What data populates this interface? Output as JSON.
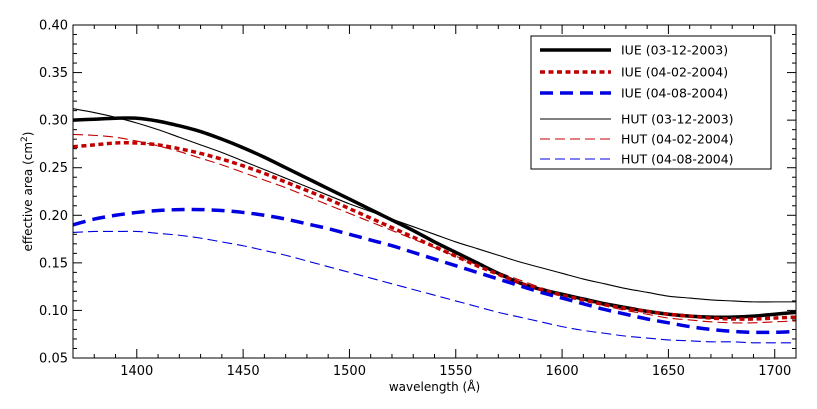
{
  "chart_data": {
    "type": "line",
    "xlabel": "wavelength (Å)",
    "ylabel_main": "effective area (cm",
    "ylabel_sup": "2",
    "ylabel_end": ")",
    "xlim": [
      1370,
      1710
    ],
    "ylim": [
      0.05,
      0.4
    ],
    "x_ticks": [
      1400,
      1450,
      1500,
      1550,
      1600,
      1650,
      1700
    ],
    "x_tick_labels": [
      "1400",
      "1450",
      "1500",
      "1550",
      "1600",
      "1650",
      "1700"
    ],
    "y_ticks": [
      0.05,
      0.1,
      0.15,
      0.2,
      0.25,
      0.3,
      0.35,
      0.4
    ],
    "y_tick_labels": [
      "0.05",
      "0.10",
      "0.15",
      "0.20",
      "0.25",
      "0.30",
      "0.35",
      "0.40"
    ],
    "grid": false,
    "legend_position": "top-right",
    "x": [
      1370,
      1380,
      1390,
      1400,
      1410,
      1420,
      1430,
      1440,
      1450,
      1460,
      1470,
      1480,
      1490,
      1500,
      1510,
      1520,
      1530,
      1540,
      1550,
      1560,
      1570,
      1580,
      1590,
      1600,
      1610,
      1620,
      1630,
      1640,
      1650,
      1660,
      1670,
      1680,
      1690,
      1700,
      1710
    ],
    "series": [
      {
        "name": "IUE (03-12-2003)",
        "color": "#000000",
        "dash": "solid",
        "weight": "thick",
        "values": [
          0.3,
          0.301,
          0.302,
          0.302,
          0.299,
          0.294,
          0.288,
          0.28,
          0.271,
          0.261,
          0.25,
          0.239,
          0.228,
          0.217,
          0.206,
          0.195,
          0.184,
          0.172,
          0.161,
          0.15,
          0.139,
          0.129,
          0.122,
          0.117,
          0.112,
          0.107,
          0.103,
          0.099,
          0.096,
          0.094,
          0.093,
          0.093,
          0.094,
          0.096,
          0.098
        ]
      },
      {
        "name": "IUE (04-02-2004)",
        "color": "#c00000",
        "dash": "dotted",
        "weight": "thick",
        "values": [
          0.272,
          0.274,
          0.276,
          0.276,
          0.274,
          0.27,
          0.265,
          0.259,
          0.252,
          0.244,
          0.235,
          0.226,
          0.217,
          0.207,
          0.197,
          0.187,
          0.177,
          0.167,
          0.157,
          0.147,
          0.138,
          0.129,
          0.122,
          0.116,
          0.111,
          0.106,
          0.102,
          0.099,
          0.096,
          0.094,
          0.092,
          0.091,
          0.091,
          0.092,
          0.093
        ]
      },
      {
        "name": "IUE (04-08-2004)",
        "color": "#0000e0",
        "dash": "dashed",
        "weight": "thick",
        "values": [
          0.19,
          0.196,
          0.2,
          0.203,
          0.205,
          0.206,
          0.206,
          0.205,
          0.203,
          0.2,
          0.196,
          0.191,
          0.186,
          0.18,
          0.174,
          0.168,
          0.161,
          0.154,
          0.147,
          0.14,
          0.133,
          0.126,
          0.119,
          0.113,
          0.107,
          0.101,
          0.096,
          0.091,
          0.087,
          0.083,
          0.08,
          0.078,
          0.077,
          0.077,
          0.078
        ]
      },
      {
        "name": "HUT (03-12-2003)",
        "color": "#000000",
        "dash": "solid",
        "weight": "thin",
        "values": [
          0.312,
          0.308,
          0.303,
          0.297,
          0.29,
          0.282,
          0.274,
          0.266,
          0.257,
          0.248,
          0.239,
          0.23,
          0.221,
          0.212,
          0.204,
          0.196,
          0.188,
          0.18,
          0.172,
          0.165,
          0.158,
          0.151,
          0.145,
          0.139,
          0.133,
          0.128,
          0.123,
          0.119,
          0.115,
          0.113,
          0.111,
          0.11,
          0.109,
          0.109,
          0.109
        ]
      },
      {
        "name": "HUT (04-02-2004)",
        "color": "#c00000",
        "dash": "dashed",
        "weight": "thin",
        "values": [
          0.285,
          0.284,
          0.282,
          0.278,
          0.273,
          0.267,
          0.26,
          0.253,
          0.245,
          0.237,
          0.229,
          0.22,
          0.211,
          0.202,
          0.193,
          0.184,
          0.175,
          0.166,
          0.157,
          0.148,
          0.14,
          0.132,
          0.124,
          0.117,
          0.111,
          0.105,
          0.1,
          0.096,
          0.092,
          0.09,
          0.088,
          0.087,
          0.087,
          0.088,
          0.089
        ]
      },
      {
        "name": "HUT (04-08-2004)",
        "color": "#0000e0",
        "dash": "dashed",
        "weight": "thin",
        "values": [
          0.182,
          0.183,
          0.183,
          0.183,
          0.181,
          0.179,
          0.176,
          0.172,
          0.168,
          0.163,
          0.158,
          0.152,
          0.146,
          0.14,
          0.134,
          0.128,
          0.122,
          0.116,
          0.11,
          0.104,
          0.098,
          0.093,
          0.088,
          0.083,
          0.079,
          0.076,
          0.073,
          0.071,
          0.069,
          0.068,
          0.067,
          0.067,
          0.066,
          0.066,
          0.066
        ]
      }
    ]
  }
}
